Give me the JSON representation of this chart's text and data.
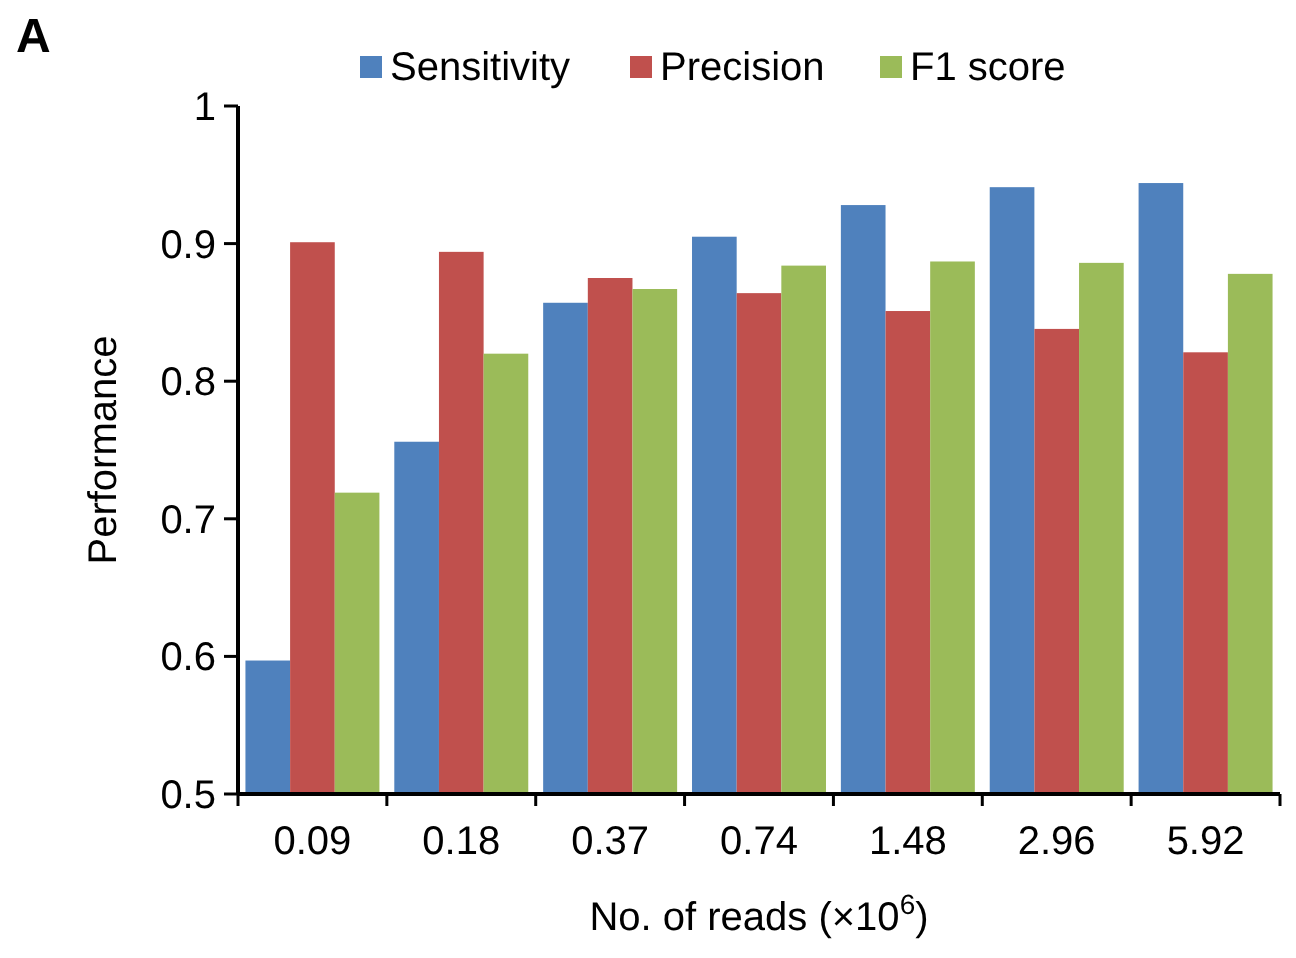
{
  "chart_data": {
    "type": "bar",
    "xlabel": "No. of reads (×10$^{6}$)",
    "ylabel": "Performance",
    "annotations": [
      "A"
    ],
    "categories": [
      "0.09",
      "0.18",
      "0.37",
      "0.74",
      "1.48",
      "2.96",
      "5.92"
    ],
    "series": [
      {
        "name": "Sensitivity",
        "color": "#4f81bd",
        "values": [
          0.597,
          0.756,
          0.857,
          0.905,
          0.928,
          0.941,
          0.944
        ]
      },
      {
        "name": "Precision",
        "color": "#c0504d",
        "values": [
          0.901,
          0.894,
          0.875,
          0.864,
          0.851,
          0.838,
          0.821
        ]
      },
      {
        "name": "F1 score",
        "color": "#9bbb59",
        "values": [
          0.719,
          0.82,
          0.867,
          0.884,
          0.887,
          0.886,
          0.878
        ]
      }
    ],
    "ylim": [
      0.5,
      1
    ],
    "yticks": [
      0.5,
      0.6,
      0.7,
      0.8,
      0.9,
      1
    ],
    "grid": false,
    "legend": "top"
  }
}
